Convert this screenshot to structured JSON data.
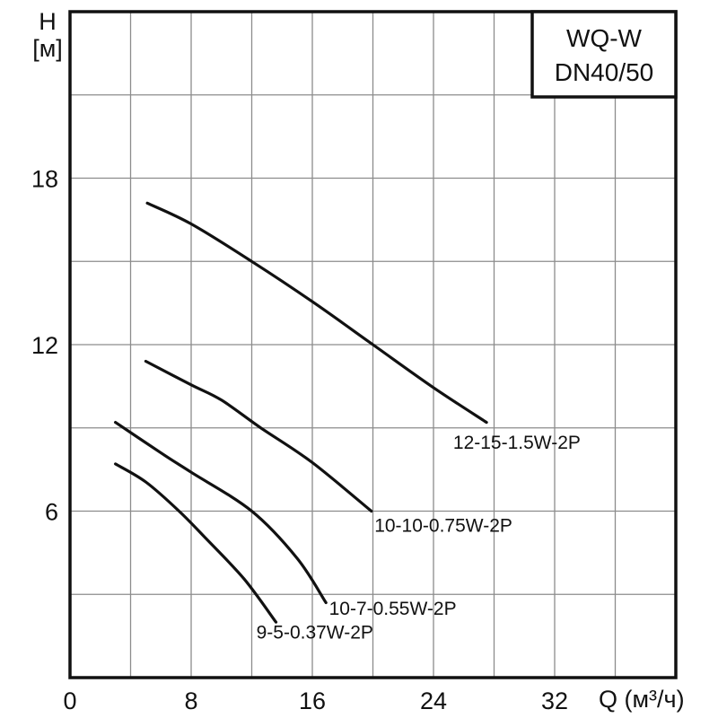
{
  "header": {
    "model_line1": "WQ-W",
    "model_line2": "DN40/50"
  },
  "chart_data": {
    "type": "line",
    "title": "WQ-W DN40/50",
    "xlabel": "Q (м³/ч)",
    "ylabel_line1": "H",
    "ylabel_line2": "[м]",
    "xlim": [
      0,
      40
    ],
    "ylim": [
      0,
      24
    ],
    "x_grid_step": 4,
    "y_grid_step": 3,
    "grid": true,
    "legend_position": "inline-labels",
    "x_ticks": [
      {
        "value": 0,
        "label": "0"
      },
      {
        "value": 8,
        "label": "8"
      },
      {
        "value": 16,
        "label": "16"
      },
      {
        "value": 24,
        "label": "24"
      },
      {
        "value": 32,
        "label": "32"
      }
    ],
    "y_ticks": [
      {
        "value": 6,
        "label": "6"
      },
      {
        "value": 12,
        "label": "12"
      },
      {
        "value": 18,
        "label": "18"
      }
    ],
    "series": [
      {
        "name": "12-15-1.5W-2P",
        "points": [
          [
            5.1,
            17.1
          ],
          [
            8,
            16.35
          ],
          [
            12,
            15
          ],
          [
            16,
            13.55
          ],
          [
            20,
            12
          ],
          [
            24,
            10.45
          ],
          [
            27.5,
            9.2
          ]
        ],
        "label_anchor": {
          "q": 25.3,
          "h": 8.25,
          "align": "start"
        }
      },
      {
        "name": "10-10-0.75W-2P",
        "points": [
          [
            5,
            11.4
          ],
          [
            8,
            10.55
          ],
          [
            10,
            10
          ],
          [
            12.6,
            9
          ],
          [
            16,
            7.75
          ],
          [
            19.9,
            6
          ]
        ],
        "label_anchor": {
          "q": 20.1,
          "h": 5.25,
          "align": "start"
        }
      },
      {
        "name": "10-7-0.55W-2P",
        "points": [
          [
            3,
            9.2
          ],
          [
            6,
            8.1
          ],
          [
            8,
            7.4
          ],
          [
            12,
            6
          ],
          [
            15,
            4.3
          ],
          [
            16.9,
            2.7
          ]
        ],
        "label_anchor": {
          "q": 17.1,
          "h": 2.27,
          "align": "start"
        }
      },
      {
        "name": "9-5-0.37W-2P",
        "points": [
          [
            3,
            7.7
          ],
          [
            5,
            7.05
          ],
          [
            7.2,
            6
          ],
          [
            9,
            5
          ],
          [
            11.5,
            3.55
          ],
          [
            13.6,
            2
          ]
        ],
        "label_anchor": {
          "q": 12.3,
          "h": 1.4,
          "align": "start"
        }
      }
    ]
  },
  "colors": {
    "curve": "#111111",
    "grid": "#8c8c8c",
    "frame": "#111111",
    "background": "#ffffff",
    "text": "#111111"
  }
}
